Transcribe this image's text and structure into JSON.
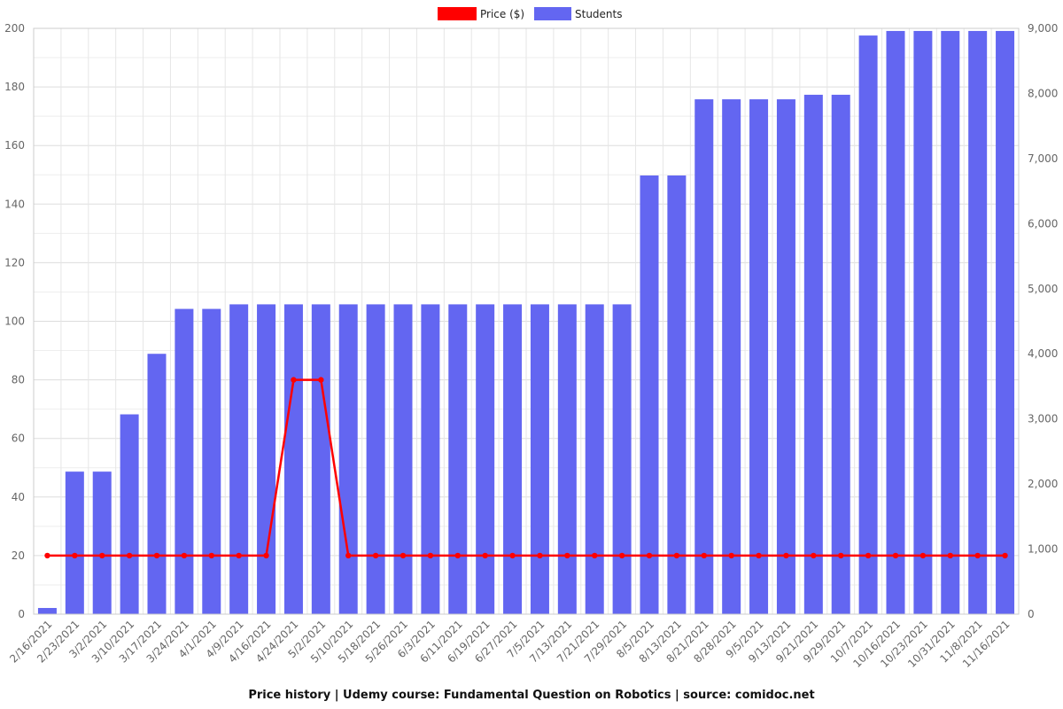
{
  "chart_data": {
    "type": "bar",
    "title": "Price history | Udemy course: Fundamental Question on Robotics | source: comidoc.net",
    "categories": [
      "2/16/2021",
      "2/23/2021",
      "3/2/2021",
      "3/10/2021",
      "3/17/2021",
      "3/24/2021",
      "4/1/2021",
      "4/9/2021",
      "4/16/2021",
      "4/24/2021",
      "5/2/2021",
      "5/10/2021",
      "5/18/2021",
      "5/26/2021",
      "6/3/2021",
      "6/11/2021",
      "6/19/2021",
      "6/27/2021",
      "7/5/2021",
      "7/13/2021",
      "7/21/2021",
      "7/29/2021",
      "8/5/2021",
      "8/13/2021",
      "8/21/2021",
      "8/28/2021",
      "9/5/2021",
      "9/13/2021",
      "9/21/2021",
      "9/29/2021",
      "10/7/2021",
      "10/16/2021",
      "10/23/2021",
      "10/31/2021",
      "11/8/2021",
      "11/16/2021"
    ],
    "series": [
      {
        "name": "Price ($)",
        "type": "line",
        "axis": "left",
        "color": "#ff0000",
        "values": [
          20,
          20,
          20,
          20,
          20,
          20,
          20,
          20,
          20,
          80,
          80,
          20,
          20,
          20,
          20,
          20,
          20,
          20,
          20,
          20,
          20,
          20,
          20,
          20,
          20,
          20,
          20,
          20,
          20,
          20,
          20,
          20,
          20,
          20,
          20,
          20
        ]
      },
      {
        "name": "Students",
        "type": "bar",
        "axis": "right",
        "color": "#6366f1",
        "values": [
          95,
          2190,
          2190,
          3070,
          4000,
          4690,
          4690,
          4760,
          4760,
          4760,
          4760,
          4760,
          4760,
          4760,
          4760,
          4760,
          4760,
          4760,
          4760,
          4760,
          4760,
          4760,
          6740,
          6740,
          7910,
          7910,
          7910,
          7910,
          7980,
          7980,
          8890,
          8960,
          8960,
          8960,
          8960,
          8960
        ]
      }
    ],
    "y_left": {
      "range": [
        0,
        200
      ],
      "ticks": [
        "0",
        "20",
        "40",
        "60",
        "80",
        "100",
        "120",
        "140",
        "160",
        "180",
        "200"
      ]
    },
    "y_right": {
      "range": [
        0,
        9000
      ],
      "ticks": [
        "0",
        "1,000",
        "2,000",
        "3,000",
        "4,000",
        "5,000",
        "6,000",
        "7,000",
        "8,000",
        "9,000"
      ]
    },
    "grid": true,
    "legend_position": "top-center"
  }
}
